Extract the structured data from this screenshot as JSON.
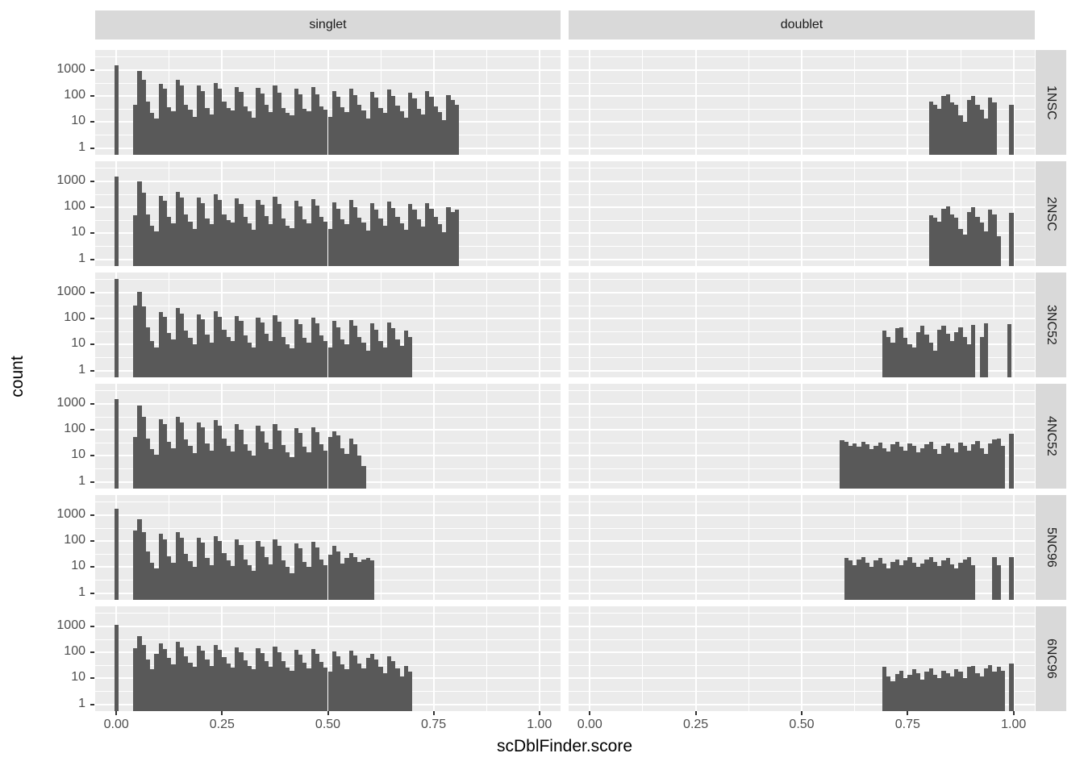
{
  "chart_data": {
    "type": "bar",
    "subtype": "faceted-log-histogram",
    "xlabel": "scDblFinder.score",
    "ylabel": "count",
    "facet_cols": [
      "singlet",
      "doublet"
    ],
    "facet_rows": [
      "1NSC",
      "2NSC",
      "3NC52",
      "4NC52",
      "5NC96",
      "6NC96"
    ],
    "x_ticks": [
      "0.00",
      "0.25",
      "0.50",
      "0.75",
      "1.00"
    ],
    "x_tick_values": [
      0,
      0.25,
      0.5,
      0.75,
      1
    ],
    "y_ticks": [
      "1000",
      "100",
      "10",
      "1"
    ],
    "y_tick_values": [
      1000,
      100,
      10,
      1
    ],
    "y_minor_values": [
      3.162,
      31.62,
      316.2,
      3162
    ],
    "x_minor_values": [
      0.125,
      0.375,
      0.625,
      0.875
    ],
    "x_range": [
      -0.05,
      1.05
    ],
    "y_range_log": [
      0.55,
      6000
    ],
    "binwidth": 0.01,
    "grid_on": true,
    "legend": "none",
    "bar_color": "#595959",
    "panel_bg": "#EBEBEB",
    "strip_bg": "#D9D9D9",
    "tick_text_color": "#4D4D4D",
    "panels": [
      {
        "row": "1NSC",
        "col": "singlet",
        "spike": {
          "x": 0,
          "count": 1500
        },
        "start": 0.04,
        "counts": [
          45,
          950,
          420,
          60,
          22,
          14,
          300,
          190,
          38,
          26,
          420,
          260,
          48,
          30,
          16,
          260,
          160,
          36,
          20,
          330,
          200,
          60,
          35,
          28,
          230,
          150,
          40,
          26,
          15,
          210,
          130,
          48,
          24,
          260,
          140,
          35,
          22,
          18,
          190,
          115,
          32,
          26,
          220,
          120,
          40,
          30,
          16,
          160,
          95,
          38,
          24,
          200,
          110,
          45,
          28,
          14,
          150,
          90,
          35,
          22,
          180,
          100,
          42,
          26,
          15,
          140,
          85,
          32,
          20,
          160,
          95,
          40,
          24,
          12,
          110,
          70,
          45
        ]
      },
      {
        "row": "1NSC",
        "col": "doublet",
        "start": 0.8,
        "counts": [
          60,
          45,
          33,
          100,
          120,
          58,
          45,
          18,
          10,
          70,
          105,
          48,
          30,
          14,
          88,
          58
        ],
        "extra": [
          {
            "x": 0.99,
            "count": 45
          }
        ]
      },
      {
        "row": "2NSC",
        "col": "singlet",
        "spike": {
          "x": 0,
          "count": 1500
        },
        "start": 0.04,
        "counts": [
          50,
          1000,
          380,
          55,
          20,
          12,
          280,
          180,
          42,
          24,
          400,
          240,
          52,
          28,
          15,
          240,
          150,
          38,
          22,
          310,
          190,
          55,
          32,
          26,
          220,
          140,
          44,
          24,
          14,
          200,
          125,
          45,
          22,
          250,
          135,
          38,
          20,
          16,
          185,
          110,
          35,
          24,
          210,
          115,
          42,
          28,
          15,
          155,
          90,
          36,
          22,
          190,
          105,
          40,
          26,
          13,
          145,
          85,
          38,
          20,
          170,
          95,
          44,
          24,
          14,
          135,
          80,
          34,
          18,
          150,
          90,
          42,
          22,
          11,
          100,
          65,
          80
        ]
      },
      {
        "row": "2NSC",
        "col": "doublet",
        "start": 0.8,
        "counts": [
          50,
          40,
          28,
          90,
          110,
          52,
          40,
          15,
          9,
          65,
          100,
          44,
          26,
          12,
          80,
          52,
          8
        ],
        "extra": [
          {
            "x": 0.99,
            "count": 62
          }
        ]
      },
      {
        "row": "3NC52",
        "col": "singlet",
        "spike": {
          "x": 0,
          "count": 3300
        },
        "start": 0.04,
        "counts": [
          320,
          1050,
          300,
          45,
          14,
          8,
          180,
          120,
          28,
          16,
          260,
          160,
          35,
          18,
          10,
          150,
          95,
          24,
          12,
          190,
          115,
          38,
          20,
          14,
          130,
          80,
          22,
          12,
          8,
          110,
          70,
          26,
          14,
          140,
          75,
          20,
          10,
          7,
          95,
          60,
          18,
          12,
          110,
          65,
          22,
          14,
          8,
          80,
          48,
          16,
          10,
          90,
          55,
          20,
          12,
          6,
          65,
          38,
          14,
          8,
          70,
          42,
          16,
          9,
          35,
          20
        ]
      },
      {
        "row": "3NC52",
        "col": "doublet",
        "start": 0.69,
        "counts": [
          35,
          20,
          12,
          42,
          48,
          18,
          10,
          8,
          30,
          52,
          24,
          12,
          6,
          38,
          55,
          26,
          14,
          30,
          48,
          20,
          10,
          58
        ],
        "extra": [
          {
            "x": 0.92,
            "count": 20
          },
          {
            "x": 0.93,
            "count": 68
          },
          {
            "x": 0.985,
            "count": 60
          }
        ]
      },
      {
        "row": "4NC52",
        "col": "singlet",
        "spike": {
          "x": 0,
          "count": 1500
        },
        "start": 0.04,
        "counts": [
          55,
          850,
          330,
          48,
          18,
          11,
          260,
          165,
          35,
          20,
          330,
          200,
          42,
          24,
          13,
          200,
          125,
          30,
          16,
          240,
          150,
          45,
          24,
          15,
          170,
          105,
          28,
          16,
          10,
          150,
          90,
          32,
          18,
          170,
          95,
          26,
          14,
          9,
          120,
          75,
          22,
          14,
          130,
          80,
          28,
          16,
          55,
          90,
          60,
          20,
          12,
          45,
          28,
          10,
          4
        ]
      },
      {
        "row": "4NC52",
        "col": "doublet",
        "start": 0.59,
        "counts": [
          40,
          35,
          25,
          30,
          22,
          35,
          28,
          18,
          25,
          32,
          20,
          15,
          28,
          35,
          22,
          16,
          30,
          25,
          14,
          20,
          28,
          35,
          18,
          12,
          25,
          30,
          20,
          14,
          32,
          24,
          16,
          28,
          38,
          20,
          12,
          30,
          42,
          45,
          25
        ],
        "extra": [
          {
            "x": 0.99,
            "count": 70
          }
        ]
      },
      {
        "row": "5NC96",
        "col": "singlet",
        "spike": {
          "x": 0,
          "count": 1800
        },
        "start": 0.04,
        "counts": [
          260,
          700,
          230,
          40,
          15,
          9,
          190,
          120,
          26,
          15,
          230,
          140,
          32,
          17,
          10,
          140,
          88,
          22,
          12,
          160,
          100,
          34,
          18,
          11,
          115,
          72,
          20,
          12,
          7,
          100,
          62,
          24,
          13,
          120,
          68,
          18,
          10,
          6,
          85,
          52,
          16,
          10,
          95,
          58,
          20,
          12,
          30,
          65,
          40,
          14,
          22,
          35,
          24,
          16,
          20,
          22,
          18
        ]
      },
      {
        "row": "5NC96",
        "col": "doublet",
        "start": 0.6,
        "counts": [
          22,
          18,
          12,
          20,
          25,
          15,
          10,
          18,
          22,
          14,
          9,
          16,
          20,
          12,
          18,
          24,
          15,
          10,
          14,
          20,
          25,
          16,
          11,
          18,
          22,
          13,
          9,
          15,
          20,
          24,
          12
        ],
        "extra": [
          {
            "x": 0.95,
            "count": 25
          },
          {
            "x": 0.96,
            "count": 12
          },
          {
            "x": 0.99,
            "count": 25
          }
        ]
      },
      {
        "row": "6NC96",
        "col": "singlet",
        "spike": {
          "x": 0,
          "count": 1200
        },
        "start": 0.04,
        "counts": [
          150,
          420,
          200,
          55,
          22,
          90,
          230,
          140,
          60,
          35,
          250,
          160,
          70,
          40,
          28,
          180,
          120,
          55,
          30,
          200,
          130,
          65,
          38,
          26,
          160,
          105,
          50,
          30,
          22,
          150,
          95,
          45,
          28,
          170,
          100,
          48,
          26,
          20,
          130,
          85,
          40,
          24,
          140,
          90,
          44,
          26,
          18,
          110,
          70,
          35,
          22,
          120,
          75,
          38,
          24,
          60,
          90,
          55,
          28,
          16,
          70,
          45,
          24,
          12,
          30,
          18
        ]
      },
      {
        "row": "6NC96",
        "col": "doublet",
        "start": 0.69,
        "counts": [
          28,
          12,
          8,
          15,
          20,
          10,
          14,
          22,
          16,
          9,
          18,
          25,
          14,
          10,
          20,
          16,
          12,
          22,
          18,
          10,
          28,
          30,
          16,
          12,
          25,
          32,
          18,
          28,
          20
        ],
        "extra": [
          {
            "x": 0.99,
            "count": 38
          }
        ]
      }
    ]
  }
}
